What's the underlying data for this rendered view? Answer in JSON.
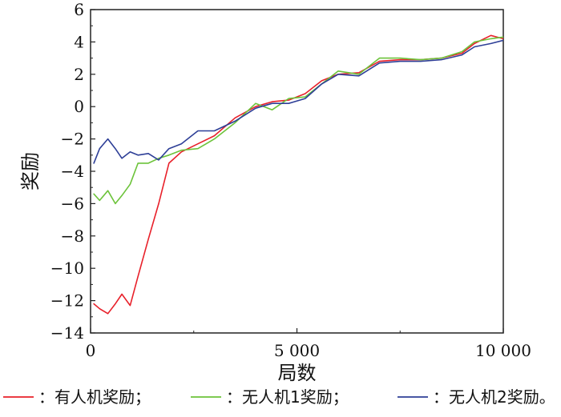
{
  "chart_data": {
    "type": "line",
    "title": "",
    "xlabel": "局数",
    "ylabel": "奖励",
    "xlim": [
      0,
      10000
    ],
    "ylim": [
      -14,
      6
    ],
    "x_ticks": [
      {
        "value": 0,
        "label": "0"
      },
      {
        "value": 5000,
        "label": "5 000"
      },
      {
        "value": 10000,
        "label": "10 000"
      }
    ],
    "y_ticks": [
      {
        "value": 6,
        "label": "6"
      },
      {
        "value": 4,
        "label": "4"
      },
      {
        "value": 2,
        "label": "2"
      },
      {
        "value": 0,
        "label": "0"
      },
      {
        "value": -2,
        "label": "−2"
      },
      {
        "value": -4,
        "label": "−4"
      },
      {
        "value": -6,
        "label": "−6"
      },
      {
        "value": -8,
        "label": "−8"
      },
      {
        "value": -10,
        "label": "−10"
      },
      {
        "value": -12,
        "label": "−12"
      },
      {
        "value": -14,
        "label": "−14"
      }
    ],
    "grid": false,
    "legend_position": "bottom",
    "series": [
      {
        "name": "有人机奖励",
        "legend_text": "：有人机奖励；",
        "color": "#e8202a",
        "x": [
          80,
          220,
          420,
          600,
          760,
          960,
          1150,
          1400,
          1650,
          1900,
          2200,
          2600,
          3000,
          3500,
          4000,
          4400,
          4800,
          5200,
          5600,
          6000,
          6500,
          7000,
          7500,
          8000,
          8500,
          9000,
          9300,
          9700,
          10000
        ],
        "y": [
          -12.2,
          -12.5,
          -12.8,
          -12.2,
          -11.6,
          -12.3,
          -10.5,
          -8.2,
          -6.0,
          -3.5,
          -2.8,
          -2.3,
          -1.8,
          -0.7,
          0.0,
          0.3,
          0.4,
          0.8,
          1.6,
          2.0,
          2.1,
          2.8,
          2.9,
          2.9,
          3.0,
          3.3,
          3.9,
          4.4,
          4.2
        ]
      },
      {
        "name": "无人机1奖励",
        "legend_text": "：无人机1奖励；",
        "color": "#6cc33a",
        "x": [
          80,
          220,
          420,
          600,
          760,
          960,
          1150,
          1400,
          1650,
          1900,
          2200,
          2600,
          3000,
          3500,
          4000,
          4400,
          4800,
          5200,
          5600,
          6000,
          6500,
          7000,
          7500,
          8000,
          8500,
          9000,
          9300,
          9700,
          10000
        ],
        "y": [
          -5.4,
          -5.8,
          -5.2,
          -6.0,
          -5.5,
          -4.8,
          -3.5,
          -3.5,
          -3.2,
          -3.0,
          -2.7,
          -2.6,
          -2.0,
          -1.0,
          0.2,
          -0.2,
          0.5,
          0.6,
          1.4,
          2.2,
          2.0,
          3.0,
          3.0,
          2.9,
          3.0,
          3.4,
          4.0,
          4.2,
          4.3
        ]
      },
      {
        "name": "无人机2奖励",
        "legend_text": "：无人机2奖励。",
        "color": "#2e3f97",
        "x": [
          80,
          220,
          420,
          600,
          760,
          960,
          1150,
          1400,
          1650,
          1900,
          2200,
          2600,
          3000,
          3500,
          4000,
          4400,
          4800,
          5200,
          5600,
          6000,
          6500,
          7000,
          7500,
          8000,
          8500,
          9000,
          9300,
          9700,
          10000
        ],
        "y": [
          -3.5,
          -2.6,
          -2.0,
          -2.6,
          -3.2,
          -2.8,
          -3.0,
          -2.9,
          -3.3,
          -2.6,
          -2.3,
          -1.5,
          -1.5,
          -0.9,
          -0.1,
          0.2,
          0.2,
          0.5,
          1.4,
          2.0,
          1.9,
          2.7,
          2.8,
          2.8,
          2.9,
          3.2,
          3.7,
          3.9,
          4.1
        ]
      }
    ]
  }
}
